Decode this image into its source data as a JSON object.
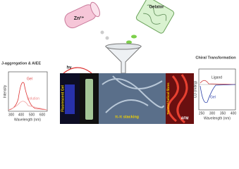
{
  "top": {
    "metal_label": "Zn²⁺",
    "gelator_label": "Gelator"
  },
  "left_panel": {
    "title": "J-aggregation & AIEE",
    "gel_label": "Gel",
    "solution_label": "Solution",
    "y_label": "Intensity",
    "x_label": "Wavelength (nm)",
    "x_ticks": [
      300,
      400,
      500,
      600
    ]
  },
  "middle_panel": {
    "light_label": "hν",
    "fluorescent_label": "Fluorescent Gel",
    "stacking_label": "π-π stacking",
    "fibres_label": "Twisted helical fibres",
    "afm_label": "AFM"
  },
  "right_panel": {
    "title": "Chiral Transformation",
    "ligand_label": "Ligand",
    "gel_label": "Gel",
    "y_label": "CD (mdeg)",
    "x_label": "Wavelength (nm)",
    "x_ticks": [
      250,
      300,
      350,
      400
    ]
  }
}
